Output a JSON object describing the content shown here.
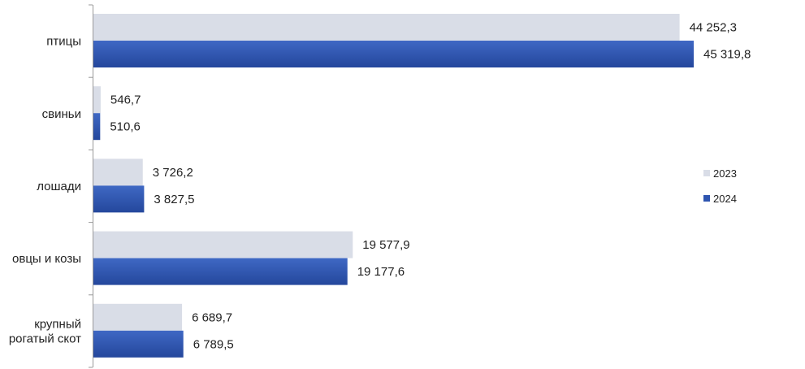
{
  "chart_data": {
    "type": "bar",
    "orientation": "horizontal",
    "categories": [
      "птицы",
      "свиньи",
      "лошади",
      "овцы и козы",
      "крупный рогатый скот"
    ],
    "category_lines": [
      [
        "птицы"
      ],
      [
        "свиньи"
      ],
      [
        "лошади"
      ],
      [
        "овцы и козы"
      ],
      [
        "крупный",
        "рогатый скот"
      ]
    ],
    "series": [
      {
        "name": "2023",
        "color": "#d9dde7",
        "values": [
          44252.3,
          546.7,
          3726.2,
          19577.9,
          6689.7
        ],
        "labels": [
          "44 252,3",
          "546,7",
          "3 726,2",
          "19 577,9",
          "6 689,7"
        ]
      },
      {
        "name": "2024",
        "color": "#2e55b0",
        "values": [
          45319.8,
          510.6,
          3827.5,
          19177.6,
          6789.5
        ],
        "labels": [
          "45 319,8",
          "510,6",
          "3 827,5",
          "19 177,6",
          "6 789,5"
        ]
      }
    ],
    "xlim": [
      0,
      53000
    ],
    "grid": false,
    "legend_placement": "right"
  }
}
